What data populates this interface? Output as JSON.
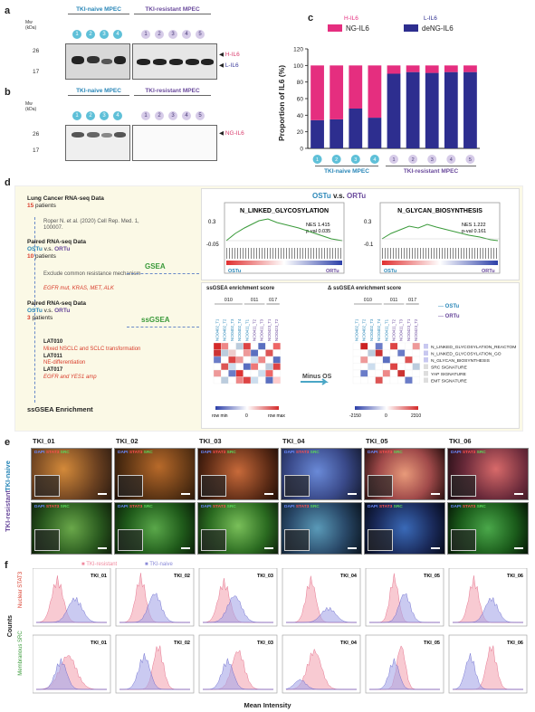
{
  "panels": {
    "a": "a",
    "b": "b",
    "c": "c",
    "d": "d",
    "e": "e",
    "f": "f"
  },
  "blots": {
    "naive_header": "TKI-naive MPEC",
    "resistant_header": "TKI-resistant MPEC",
    "mw_label": "Mw\n(kDa)",
    "lanes_naive": [
      "1",
      "2",
      "3",
      "4"
    ],
    "lanes_resistant": [
      "1",
      "2",
      "3",
      "4",
      "5"
    ],
    "a_ticks": [
      "26",
      "17"
    ],
    "a_arrow_h": "H-IL6",
    "a_arrow_l": "L-IL6",
    "b_ticks": [
      "26",
      "17"
    ],
    "b_arrow": "NG-IL6"
  },
  "chart_data": {
    "type": "bar",
    "stacked": true,
    "legend": [
      {
        "name": "H-IL6",
        "color": "#e52e7f",
        "label_color": "#e52e7f"
      },
      {
        "name": "NG-IL6",
        "color": "#e52e7f"
      },
      {
        "name": "L-IL6",
        "color": "#2d2e8f",
        "label_color": "#2d2e8f"
      },
      {
        "name": "deNG-IL6",
        "color": "#2d2e8f"
      }
    ],
    "categories": [
      "1",
      "2",
      "3",
      "4",
      "1",
      "2",
      "3",
      "4",
      "5"
    ],
    "groups": [
      "TKI-naive MPEC",
      "TKI-resistant MPEC"
    ],
    "series": [
      {
        "name": "deNG-IL6",
        "color": "#2d2e8f",
        "values": [
          34,
          35,
          48,
          37,
          90,
          92,
          91,
          92,
          92
        ]
      },
      {
        "name": "NG-IL6",
        "color": "#e52e7f",
        "values": [
          66,
          65,
          52,
          63,
          10,
          8,
          9,
          8,
          8
        ]
      }
    ],
    "ylabel": "Proportion of IL6 (%)",
    "ylim": [
      0,
      120
    ],
    "yticks": [
      "0",
      "20",
      "40",
      "60",
      "80",
      "100",
      "120"
    ]
  },
  "flow": {
    "step1_title": "Lung Cancer RNA-seq Data",
    "step1_count": "15",
    "step1_unit": "patients",
    "ref": "Roper N. et al. (2020) Cell Rep. Med. 1, 100007.",
    "step2_title": "Paired RNA-seq Data",
    "step2_compare_a": "OSTu",
    "step2_vs": "v.s.",
    "step2_compare_b": "ORTu",
    "step2_count": "10",
    "step2_unit": "patients",
    "exclude": "Exclude common resistance mechanism",
    "exclude_list": "EGFR mut, KRAS, MET, ALK",
    "step3_title": "Paired RNA-seq Data",
    "step3_count": "3",
    "step3_unit": "patients",
    "lat010": "LAT010",
    "lat010_desc": "Mixed NSCLC and SCLC transformation",
    "lat011": "LAT011",
    "lat011_desc": "NE-differentiation",
    "lat017": "LAT017",
    "lat017_desc": "EGFR and YES1 amp",
    "final": "ssGSEA Enrichment",
    "gsea_label": "GSEA",
    "ssgsea_label": "ssGSEA"
  },
  "gsea": {
    "title_a": "OSTu",
    "title_vs": "v.s.",
    "title_b": "ORTu",
    "plot1_title": "N_LINKED_GLYCOSYLATION",
    "plot1_nes": "NES 1.415",
    "plot1_p": "p-val 0.035",
    "plot1_ymax": "0.3",
    "plot1_ymin": "-0.05",
    "plot2_title": "N_GLYCAN_BIOSYNTHESIS",
    "plot2_nes": "NES 1.222",
    "plot2_p": "p-val 0.161",
    "plot2_ymax": "0.3",
    "plot2_ymin": "-0.1",
    "left_label": "OSTu",
    "right_label": "ORTu"
  },
  "heatmap": {
    "title_left": "ssGSEA enrichment score",
    "title_right": "Δ ssGSEA enrichment score",
    "groups": [
      "010",
      "011",
      "017"
    ],
    "cols": [
      "NCI0402_T1",
      "NCI0402_T2",
      "NCI0402_T3",
      "NCI0402_T4",
      "NCI0411_T1",
      "NCI0411_T2",
      "NCI0411_T3",
      "NCI0423_T1",
      "NCI0423_T2"
    ],
    "minus": "Minus OS",
    "rows": [
      "N_LINKED_GLYCOSYLATION_REACTOME",
      "N_LINKED_GLYCOSYLATION_GO",
      "N_GLYCAN_BIOSYNTHESIS",
      "SRC SIGNATURE",
      "YAP SIGNATURE",
      "EMT SIGNATURE"
    ],
    "legend_ostu": "OSTu",
    "legend_ortu": "ORTu",
    "scale_left": [
      "row min",
      "0",
      "row max"
    ],
    "scale_right": [
      "-2150",
      "0",
      "2310"
    ]
  },
  "micro": {
    "samples": [
      "TKI_01",
      "TKI_02",
      "TKI_03",
      "TKI_04",
      "TKI_05",
      "TKI_06"
    ],
    "row_naive": "TKI-naive",
    "row_resistant": "TKI-resistant",
    "stain_dapi": "DAPI",
    "stain_stat3": "STAT3",
    "stain_src": "SRC"
  },
  "hist": {
    "legend_res": "TKI-resistant",
    "legend_naive": "TKI-naive",
    "row1": "Nuclear STAT3",
    "row2": "Membranous SRC",
    "ylabel": "Counts",
    "xlabel": "Mean Intensity",
    "samples": [
      "TKI_01",
      "TKI_02",
      "TKI_03",
      "TKI_04",
      "TKI_05",
      "TKI_06"
    ]
  },
  "colors": {
    "pink": "#e52e7f",
    "navy": "#2d2e8f",
    "teal": "#2a87b8",
    "purple": "#6a4a9c"
  }
}
